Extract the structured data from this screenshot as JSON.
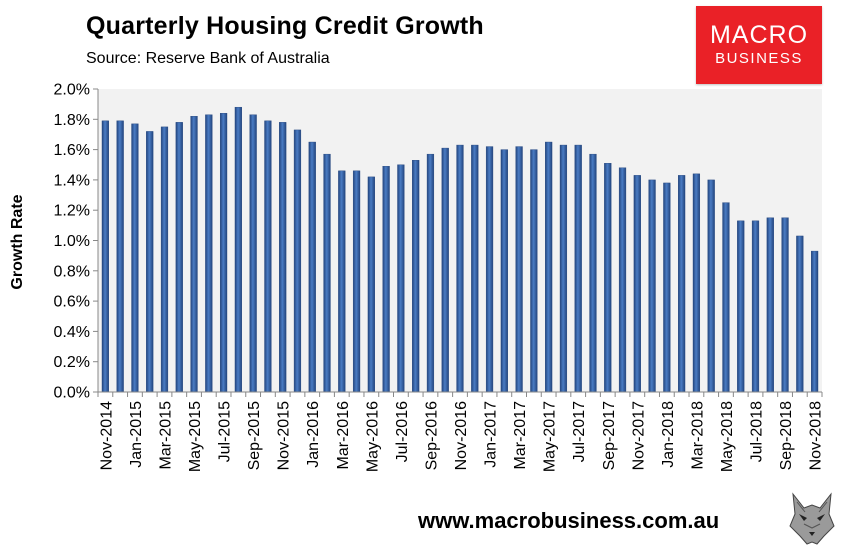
{
  "header": {
    "title": "Quarterly Housing Credit Growth",
    "subtitle": "Source: Reserve Bank of Australia"
  },
  "logo": {
    "line1": "MACRO",
    "line2": "BUSINESS"
  },
  "footer": {
    "url": "www.macrobusiness.com.au"
  },
  "chart_data": {
    "type": "bar",
    "title": "Quarterly Housing Credit Growth",
    "subtitle": "Source: Reserve Bank of Australia",
    "ylabel": "Growth Rate",
    "xlabel": "",
    "ylim": [
      0,
      2.0
    ],
    "y_ticks": [
      "0.0%",
      "0.2%",
      "0.4%",
      "0.6%",
      "0.8%",
      "1.0%",
      "1.2%",
      "1.4%",
      "1.6%",
      "1.8%",
      "2.0%"
    ],
    "y_tick_values": [
      0,
      0.2,
      0.4,
      0.6,
      0.8,
      1.0,
      1.2,
      1.4,
      1.6,
      1.8,
      2.0
    ],
    "x_tick_labels": [
      "Nov-2014",
      "Jan-2015",
      "Mar-2015",
      "May-2015",
      "Jul-2015",
      "Sep-2015",
      "Nov-2015",
      "Jan-2016",
      "Mar-2016",
      "May-2016",
      "Jul-2016",
      "Sep-2016",
      "Nov-2016",
      "Jan-2017",
      "Mar-2017",
      "May-2017",
      "Jul-2017",
      "Sep-2017",
      "Nov-2017",
      "Jan-2018",
      "Mar-2018",
      "May-2018",
      "Jul-2018",
      "Sep-2018",
      "Nov-2018"
    ],
    "categories": [
      "Nov-2014",
      "Dec-2014",
      "Jan-2015",
      "Feb-2015",
      "Mar-2015",
      "Apr-2015",
      "May-2015",
      "Jun-2015",
      "Jul-2015",
      "Aug-2015",
      "Sep-2015",
      "Oct-2015",
      "Nov-2015",
      "Dec-2015",
      "Jan-2016",
      "Feb-2016",
      "Mar-2016",
      "Apr-2016",
      "May-2016",
      "Jun-2016",
      "Jul-2016",
      "Aug-2016",
      "Sep-2016",
      "Oct-2016",
      "Nov-2016",
      "Dec-2016",
      "Jan-2017",
      "Feb-2017",
      "Mar-2017",
      "Apr-2017",
      "May-2017",
      "Jun-2017",
      "Jul-2017",
      "Aug-2017",
      "Sep-2017",
      "Oct-2017",
      "Nov-2017",
      "Dec-2017",
      "Jan-2018",
      "Feb-2018",
      "Mar-2018",
      "Apr-2018",
      "May-2018",
      "Jun-2018",
      "Jul-2018",
      "Aug-2018",
      "Sep-2018",
      "Oct-2018",
      "Nov-2018"
    ],
    "values": [
      1.79,
      1.79,
      1.77,
      1.72,
      1.75,
      1.78,
      1.82,
      1.83,
      1.84,
      1.88,
      1.83,
      1.79,
      1.78,
      1.73,
      1.65,
      1.57,
      1.46,
      1.46,
      1.42,
      1.49,
      1.5,
      1.53,
      1.57,
      1.61,
      1.63,
      1.63,
      1.62,
      1.6,
      1.62,
      1.6,
      1.65,
      1.63,
      1.63,
      1.57,
      1.51,
      1.48,
      1.43,
      1.4,
      1.38,
      1.43,
      1.44,
      1.4,
      1.25,
      1.13,
      1.13,
      1.15,
      1.15,
      1.03,
      0.93
    ],
    "value_format": "percent",
    "grid": false,
    "legend": "none",
    "colors": {
      "bar": "#3a6ab1",
      "bar_dark": "#23457e",
      "plot_bg": "#f2f2f2"
    }
  }
}
